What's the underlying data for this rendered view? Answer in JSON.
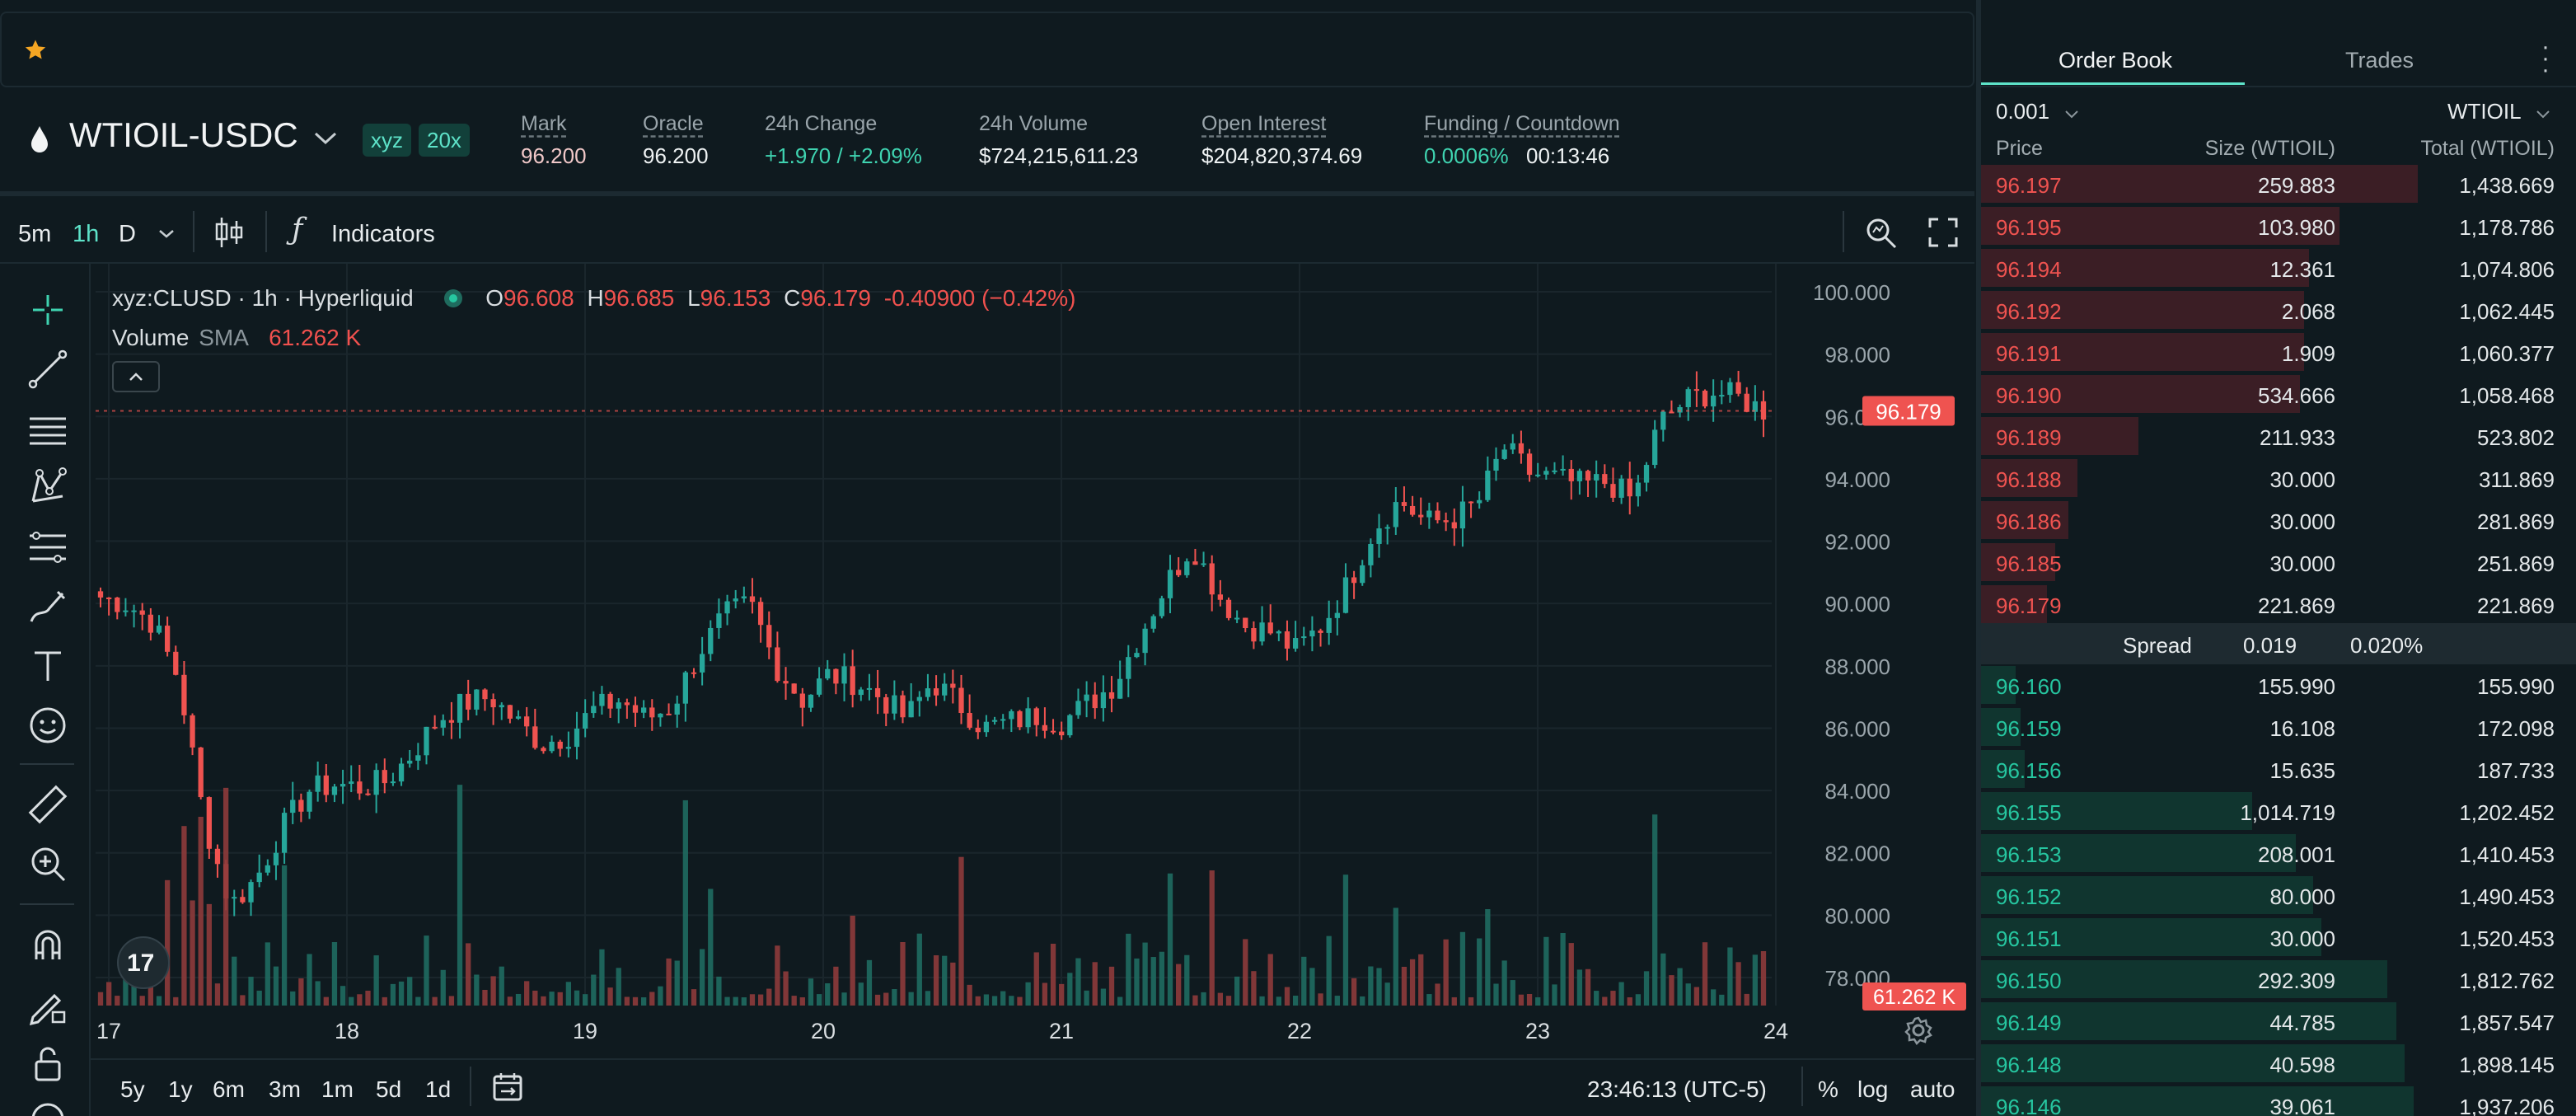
{
  "header": {
    "pair": "WTIOIL-USDC",
    "chips": [
      "xyz",
      "20x"
    ],
    "stats": [
      {
        "label": "Mark",
        "value": "96.200"
      },
      {
        "label": "Oracle",
        "value": "96.200"
      },
      {
        "label": "24h Change",
        "value": "+1.970 / +2.09%"
      },
      {
        "label": "24h Volume",
        "value": "$724,215,611.23"
      },
      {
        "label": "Open Interest",
        "value": "$204,820,374.69"
      },
      {
        "label": "Funding / Countdown",
        "value": "0.0006%",
        "value2": "00:13:46"
      }
    ]
  },
  "toolbar": {
    "intervals": [
      "5m",
      "1h",
      "D"
    ],
    "active_interval": "1h",
    "indicators_label": "Indicators"
  },
  "legend": {
    "symbol": "xyz:CLUSD · 1h · Hyperliquid",
    "o_label": "O",
    "o": "96.608",
    "h_label": "H",
    "h": "96.685",
    "l_label": "L",
    "l": "96.153",
    "c_label": "C",
    "c": "96.179",
    "change": "-0.40900 (−0.42%)",
    "volume_label": "Volume",
    "sma_label": "SMA",
    "volume_value": "61.262 K"
  },
  "chart_data": {
    "type": "candlestick",
    "y_ticks": [
      "100.000",
      "98.000",
      "96.000",
      "94.000",
      "92.000",
      "90.000",
      "88.000",
      "86.000",
      "84.000",
      "82.000",
      "80.000",
      "78.000"
    ],
    "x_ticks": [
      "17",
      "18",
      "19",
      "20",
      "21",
      "22",
      "23",
      "24"
    ],
    "ylim": [
      78,
      100
    ],
    "last_price": "96.179",
    "last_volume": "61.262 K",
    "colors": {
      "up": "#26a69a",
      "down": "#ef5350"
    },
    "close_path": [
      90.2,
      90.0,
      89.4,
      87.6,
      83.0,
      80.3,
      81.2,
      82.8,
      84.0,
      84.2,
      84.1,
      84.3,
      85.2,
      86.3,
      86.8,
      87.0,
      86.2,
      85.5,
      85.8,
      86.6,
      86.9,
      86.3,
      86.7,
      88.4,
      89.6,
      90.0,
      88.0,
      86.9,
      87.7,
      87.5,
      87.0,
      86.3,
      87.5,
      86.8,
      86.0,
      86.2,
      86.4,
      86.2,
      86.8,
      87.4,
      89.0,
      90.6,
      91.9,
      90.3,
      89.3,
      89.1,
      88.5,
      89.3,
      90.6,
      92.4,
      93.3,
      92.6,
      92.7,
      93.2,
      95.0,
      94.2,
      94.0,
      93.8,
      93.9,
      93.3,
      95.8,
      96.5,
      96.8,
      96.6,
      96.2
    ],
    "axis_time": "23:46:13 (UTC-5)"
  },
  "range_buttons": [
    "5y",
    "1y",
    "6m",
    "3m",
    "1m",
    "5d",
    "1d"
  ],
  "axis_options": {
    "percent": "%",
    "log": "log",
    "auto": "auto"
  },
  "orderbook": {
    "tabs": [
      "Order Book",
      "Trades"
    ],
    "tick": "0.001",
    "unit": "WTIOIL",
    "columns": [
      "Price",
      "Size (WTIOIL)",
      "Total (WTIOIL)"
    ],
    "asks": [
      {
        "price": "96.197",
        "size": "259.883",
        "total": "1,438.669",
        "depth": 1.0
      },
      {
        "price": "96.195",
        "size": "103.980",
        "total": "1,178.786",
        "depth": 0.82
      },
      {
        "price": "96.194",
        "size": "12.361",
        "total": "1,074.806",
        "depth": 0.75
      },
      {
        "price": "96.192",
        "size": "2.068",
        "total": "1,062.445",
        "depth": 0.74
      },
      {
        "price": "96.191",
        "size": "1.909",
        "total": "1,060.377",
        "depth": 0.74
      },
      {
        "price": "96.190",
        "size": "534.666",
        "total": "1,058.468",
        "depth": 0.73
      },
      {
        "price": "96.189",
        "size": "211.933",
        "total": "523.802",
        "depth": 0.36
      },
      {
        "price": "96.188",
        "size": "30.000",
        "total": "311.869",
        "depth": 0.22
      },
      {
        "price": "96.186",
        "size": "30.000",
        "total": "281.869",
        "depth": 0.2
      },
      {
        "price": "96.185",
        "size": "30.000",
        "total": "251.869",
        "depth": 0.17
      },
      {
        "price": "96.179",
        "size": "221.869",
        "total": "221.869",
        "depth": 0.15
      }
    ],
    "spread_label": "Spread",
    "spread_value": "0.019",
    "spread_pct": "0.020%",
    "bids": [
      {
        "price": "96.160",
        "size": "155.990",
        "total": "155.990",
        "depth": 0.08
      },
      {
        "price": "96.159",
        "size": "16.108",
        "total": "172.098",
        "depth": 0.09
      },
      {
        "price": "96.156",
        "size": "15.635",
        "total": "187.733",
        "depth": 0.1
      },
      {
        "price": "96.155",
        "size": "1,014.719",
        "total": "1,202.452",
        "depth": 0.62
      },
      {
        "price": "96.153",
        "size": "208.001",
        "total": "1,410.453",
        "depth": 0.72
      },
      {
        "price": "96.152",
        "size": "80.000",
        "total": "1,490.453",
        "depth": 0.76
      },
      {
        "price": "96.151",
        "size": "30.000",
        "total": "1,520.453",
        "depth": 0.78
      },
      {
        "price": "96.150",
        "size": "292.309",
        "total": "1,812.762",
        "depth": 0.93
      },
      {
        "price": "96.149",
        "size": "44.785",
        "total": "1,857.547",
        "depth": 0.95
      },
      {
        "price": "96.148",
        "size": "40.598",
        "total": "1,898.145",
        "depth": 0.97
      },
      {
        "price": "96.146",
        "size": "39.061",
        "total": "1,937.206",
        "depth": 0.99
      }
    ]
  }
}
